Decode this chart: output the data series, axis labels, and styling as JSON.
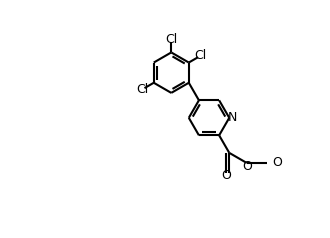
{
  "bg_color": "#ffffff",
  "line_color": "#000000",
  "line_width": 1.5,
  "font_size": 9,
  "atom_labels": {
    "N": "N",
    "O1": "O",
    "O2": "O",
    "Cl1": "Cl",
    "Cl2": "Cl",
    "Cl3": "Cl",
    "CH3": "O"
  },
  "figsize": [
    3.3,
    2.38
  ],
  "dpi": 100
}
